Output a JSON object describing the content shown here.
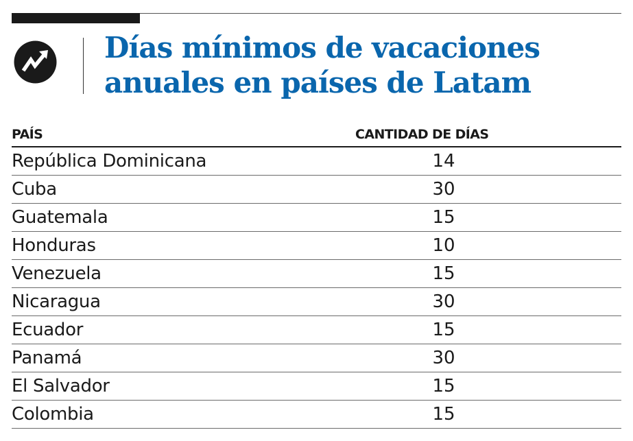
{
  "title": "Días mínimos de vacaciones anuales en países de Latam",
  "logo": {
    "icon": "trend-arrow-icon",
    "colors": {
      "background": "#1a1a1a",
      "arrow": "#ffffff"
    }
  },
  "colors": {
    "title": "#0a66ad",
    "text": "#1a1a1a"
  },
  "chart_data": {
    "type": "table",
    "title": "Días mínimos de vacaciones anuales en países de Latam",
    "columns": [
      "PAÍS",
      "CANTIDAD DE DÍAS"
    ],
    "rows": [
      {
        "country": "República Dominicana",
        "days": "14"
      },
      {
        "country": "Cuba",
        "days": "30"
      },
      {
        "country": "Guatemala",
        "days": "15"
      },
      {
        "country": "Honduras",
        "days": "10"
      },
      {
        "country": "Venezuela",
        "days": "15"
      },
      {
        "country": "Nicaragua",
        "days": "30"
      },
      {
        "country": "Ecuador",
        "days": "15"
      },
      {
        "country": "Panamá",
        "days": "30"
      },
      {
        "country": "El Salvador",
        "days": "15"
      },
      {
        "country": "Colombia",
        "days": "15"
      }
    ]
  }
}
